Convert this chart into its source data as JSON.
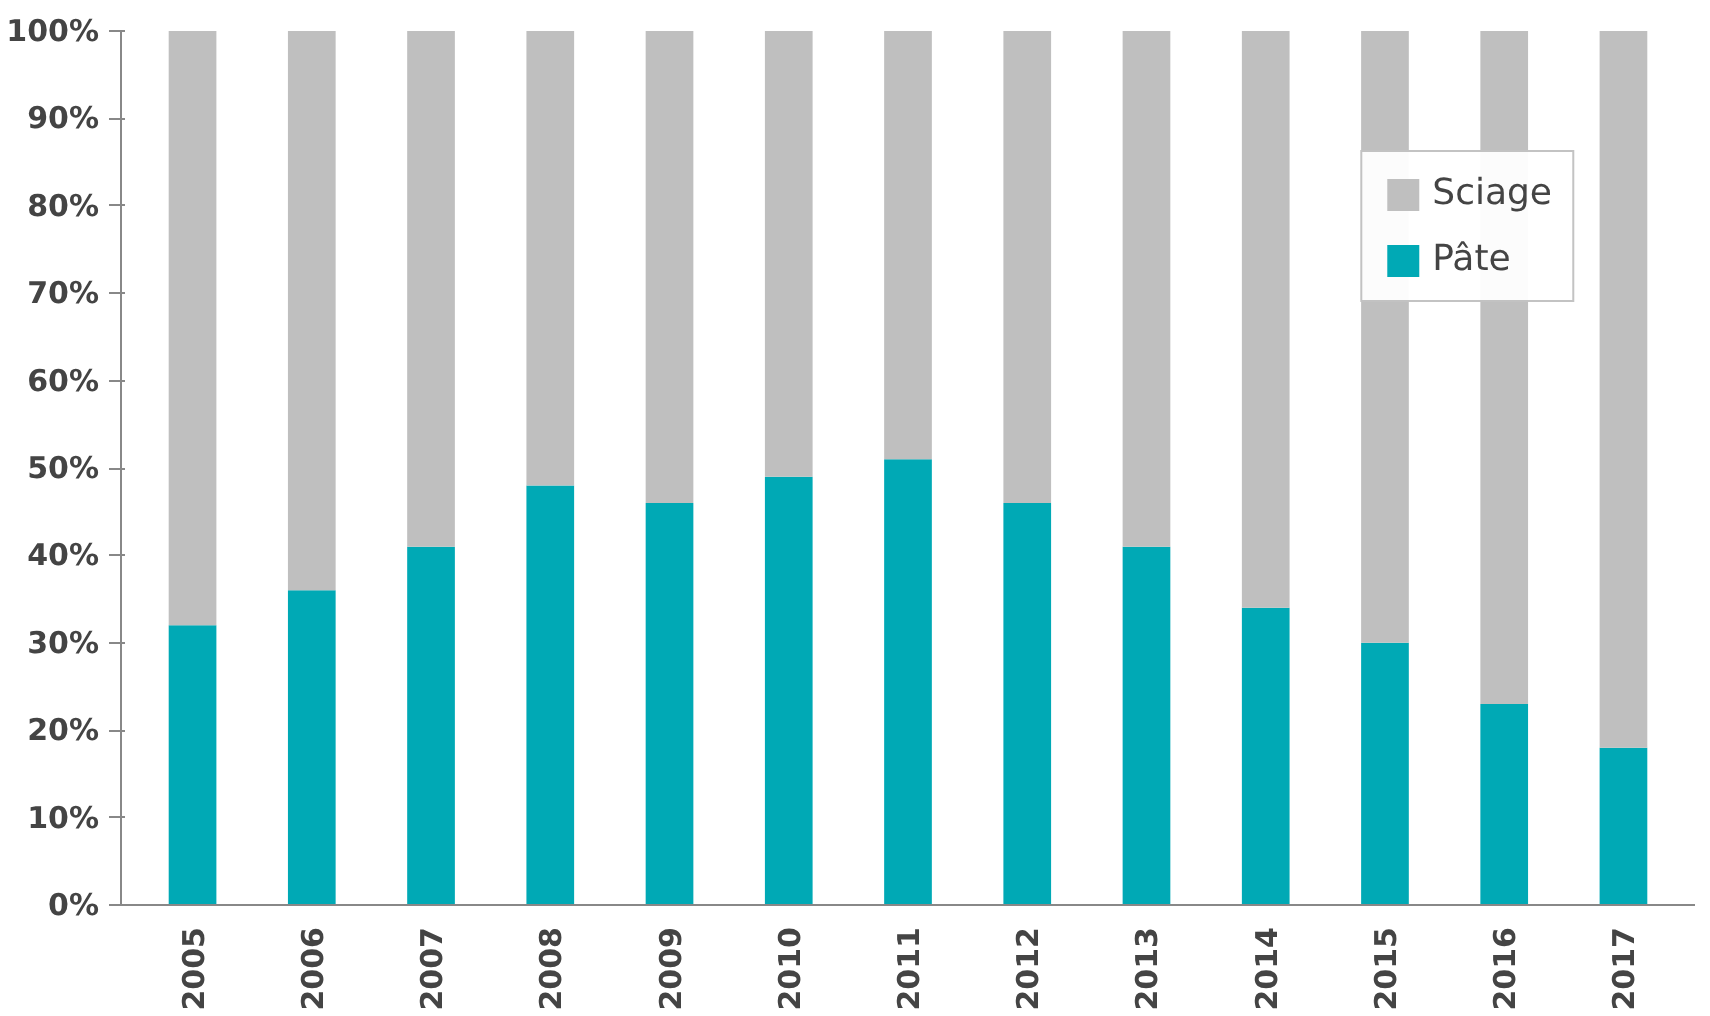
{
  "chart_data": {
    "type": "bar",
    "stacked": true,
    "categories": [
      "2005",
      "2006",
      "2007",
      "2008",
      "2009",
      "2010",
      "2011",
      "2012",
      "2013",
      "2014",
      "2015",
      "2016",
      "2017"
    ],
    "series": [
      {
        "name": "Pâte",
        "color": "#00a9b5",
        "values": [
          32,
          36,
          41,
          48,
          46,
          49,
          51,
          46,
          41,
          34,
          30,
          23,
          18
        ]
      },
      {
        "name": "Sciage",
        "color": "#bfbfbf",
        "values": [
          68,
          64,
          59,
          52,
          54,
          51,
          49,
          54,
          59,
          66,
          70,
          77,
          82
        ]
      }
    ],
    "ylim": [
      0,
      100
    ],
    "yticks": [
      {
        "value": 0,
        "label": "0%"
      },
      {
        "value": 10,
        "label": "10%"
      },
      {
        "value": 20,
        "label": "20%"
      },
      {
        "value": 30,
        "label": "30%"
      },
      {
        "value": 40,
        "label": "40%"
      },
      {
        "value": 50,
        "label": "50%"
      },
      {
        "value": 60,
        "label": "60%"
      },
      {
        "value": 70,
        "label": "70%"
      },
      {
        "value": 80,
        "label": "80%"
      },
      {
        "value": 90,
        "label": "90%"
      },
      {
        "value": 100,
        "label": "100%"
      }
    ],
    "grid": false,
    "legend": "top right"
  }
}
